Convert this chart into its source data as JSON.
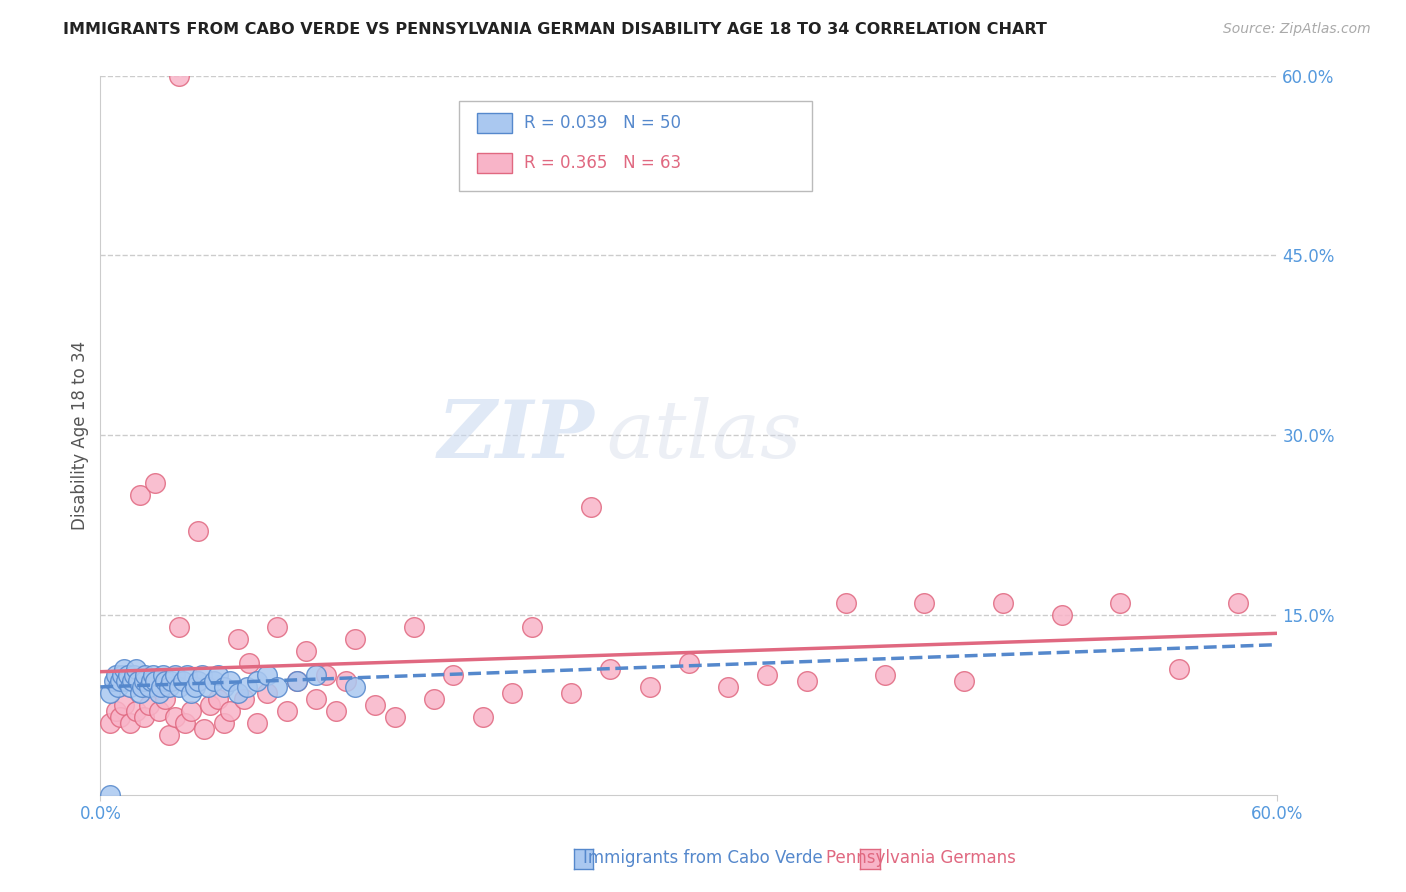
{
  "title": "IMMIGRANTS FROM CABO VERDE VS PENNSYLVANIA GERMAN DISABILITY AGE 18 TO 34 CORRELATION CHART",
  "source": "Source: ZipAtlas.com",
  "ylabel": "Disability Age 18 to 34",
  "xlim": [
    0.0,
    0.6
  ],
  "ylim": [
    0.0,
    0.6
  ],
  "xticks_bottom": [
    0.0,
    0.6
  ],
  "xticklabels_bottom": [
    "0.0%",
    "60.0%"
  ],
  "yticks_right": [
    0.15,
    0.3,
    0.45,
    0.6
  ],
  "yticklabels_right": [
    "15.0%",
    "30.0%",
    "45.0%",
    "60.0%"
  ],
  "grid_yticks": [
    0.15,
    0.3,
    0.45,
    0.6
  ],
  "grid_color": "#cccccc",
  "background_color": "#ffffff",
  "cabo_verde_color": "#aac8f0",
  "cabo_verde_edge_color": "#5588cc",
  "penn_german_color": "#f8b4c8",
  "penn_german_edge_color": "#e06880",
  "tick_color": "#5599dd",
  "cabo_verde_R": 0.039,
  "cabo_verde_N": 50,
  "penn_german_R": 0.365,
  "penn_german_N": 63,
  "cabo_verde_x": [
    0.005,
    0.007,
    0.008,
    0.009,
    0.01,
    0.011,
    0.012,
    0.013,
    0.014,
    0.015,
    0.016,
    0.017,
    0.018,
    0.019,
    0.02,
    0.021,
    0.022,
    0.023,
    0.025,
    0.026,
    0.027,
    0.028,
    0.03,
    0.031,
    0.032,
    0.033,
    0.035,
    0.036,
    0.038,
    0.04,
    0.042,
    0.044,
    0.046,
    0.048,
    0.05,
    0.052,
    0.055,
    0.058,
    0.06,
    0.063,
    0.066,
    0.07,
    0.075,
    0.08,
    0.085,
    0.09,
    0.1,
    0.11,
    0.13,
    0.005
  ],
  "cabo_verde_y": [
    0.085,
    0.095,
    0.1,
    0.09,
    0.095,
    0.1,
    0.105,
    0.095,
    0.1,
    0.09,
    0.095,
    0.1,
    0.105,
    0.095,
    0.085,
    0.09,
    0.095,
    0.1,
    0.09,
    0.095,
    0.1,
    0.095,
    0.085,
    0.09,
    0.1,
    0.095,
    0.09,
    0.095,
    0.1,
    0.09,
    0.095,
    0.1,
    0.085,
    0.09,
    0.095,
    0.1,
    0.09,
    0.095,
    0.1,
    0.09,
    0.095,
    0.085,
    0.09,
    0.095,
    0.1,
    0.09,
    0.095,
    0.1,
    0.09,
    0.0
  ],
  "penn_german_x": [
    0.005,
    0.008,
    0.01,
    0.012,
    0.015,
    0.018,
    0.02,
    0.022,
    0.025,
    0.028,
    0.03,
    0.033,
    0.035,
    0.038,
    0.04,
    0.043,
    0.046,
    0.05,
    0.053,
    0.056,
    0.06,
    0.063,
    0.066,
    0.07,
    0.073,
    0.076,
    0.08,
    0.085,
    0.09,
    0.095,
    0.1,
    0.105,
    0.11,
    0.115,
    0.12,
    0.125,
    0.13,
    0.14,
    0.15,
    0.16,
    0.17,
    0.18,
    0.195,
    0.21,
    0.22,
    0.24,
    0.26,
    0.28,
    0.3,
    0.32,
    0.34,
    0.36,
    0.38,
    0.4,
    0.42,
    0.44,
    0.46,
    0.49,
    0.52,
    0.55,
    0.58,
    0.04,
    0.25
  ],
  "penn_german_y": [
    0.06,
    0.07,
    0.065,
    0.075,
    0.06,
    0.07,
    0.25,
    0.065,
    0.075,
    0.26,
    0.07,
    0.08,
    0.05,
    0.065,
    0.14,
    0.06,
    0.07,
    0.22,
    0.055,
    0.075,
    0.08,
    0.06,
    0.07,
    0.13,
    0.08,
    0.11,
    0.06,
    0.085,
    0.14,
    0.07,
    0.095,
    0.12,
    0.08,
    0.1,
    0.07,
    0.095,
    0.13,
    0.075,
    0.065,
    0.14,
    0.08,
    0.1,
    0.065,
    0.085,
    0.14,
    0.085,
    0.105,
    0.09,
    0.11,
    0.09,
    0.1,
    0.095,
    0.16,
    0.1,
    0.16,
    0.095,
    0.16,
    0.15,
    0.16,
    0.105,
    0.16,
    0.6,
    0.24
  ],
  "watermark_zip": "ZIP",
  "watermark_atlas": "atlas",
  "legend_label_cabo": "Immigrants from Cabo Verde",
  "legend_label_penn": "Pennsylvania Germans"
}
